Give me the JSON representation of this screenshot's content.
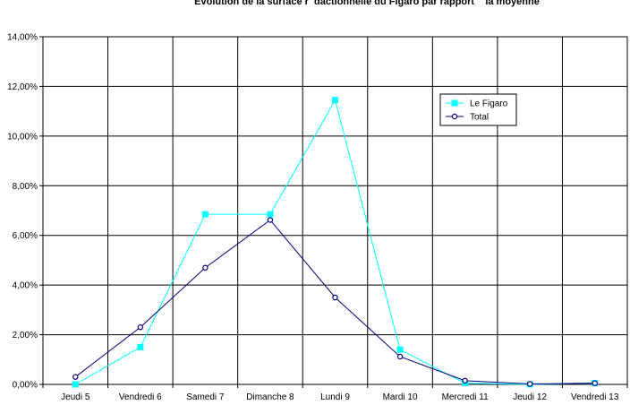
{
  "chart_data": {
    "type": "line",
    "title": "Evolution de la surface r  dactionnelle du Figaro par rapport    la moyenne",
    "xlabel": "",
    "ylabel": "",
    "categories": [
      "Jeudi 5",
      "Vendredi 6",
      "Samedi 7",
      "Dimanche 8",
      "Lundi 9",
      "Mardi 10",
      "Mercredi 11",
      "Jeudi 12",
      "Vendredi 13"
    ],
    "y_ticks": [
      "0,00%",
      "2,00%",
      "4,00%",
      "6,00%",
      "8,00%",
      "10,00%",
      "12,00%",
      "14,00%"
    ],
    "ylim": [
      0,
      14
    ],
    "grid": true,
    "legend_position": "top-right",
    "series": [
      {
        "name": "Le Figaro",
        "color": "#00ffff",
        "marker": "square",
        "values": [
          0.0,
          1.5,
          6.85,
          6.85,
          11.45,
          1.4,
          0.05,
          0.0,
          0.05
        ]
      },
      {
        "name": "Total",
        "color": "#000080",
        "marker": "circle",
        "values": [
          0.3,
          2.3,
          4.7,
          6.62,
          3.5,
          1.12,
          0.15,
          0.02,
          0.05
        ]
      }
    ]
  }
}
